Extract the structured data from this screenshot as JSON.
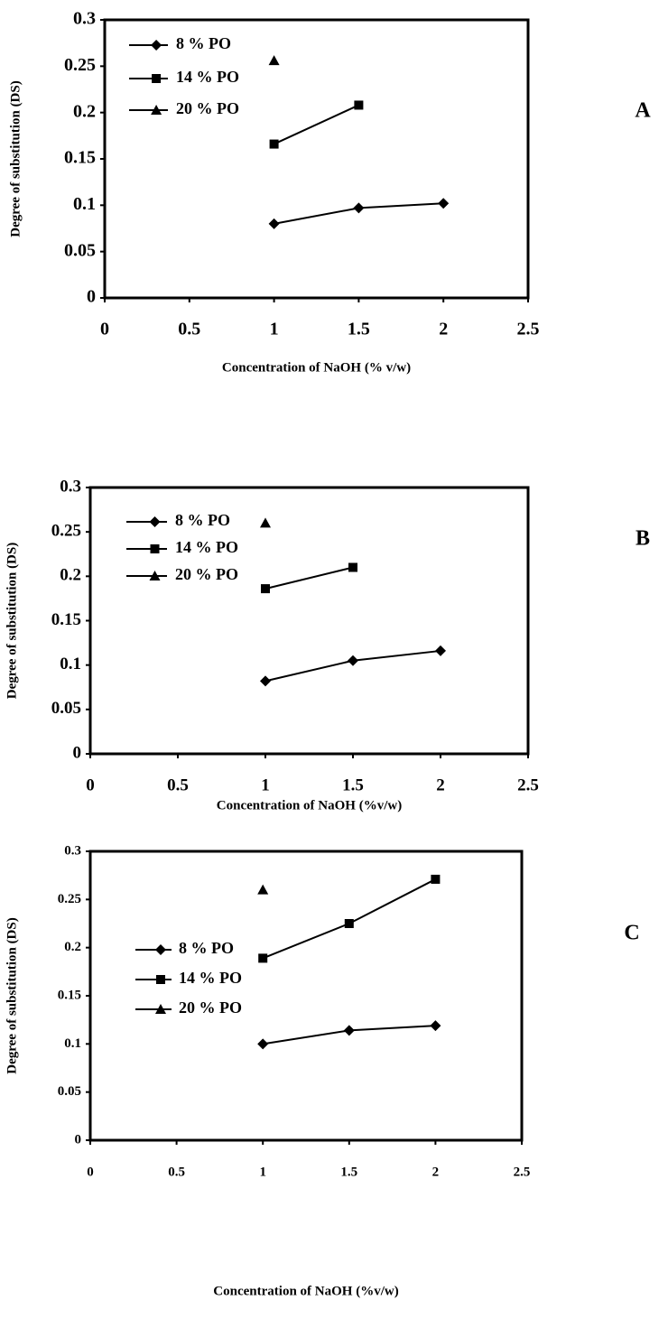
{
  "chart_data": [
    {
      "type": "line",
      "panel_label": "A",
      "xlabel": "Concentration of NaOH (% v/w)",
      "ylabel": "Degree of substitution (DS)",
      "x": [
        1,
        1.5,
        2
      ],
      "xlim": [
        0,
        2.5
      ],
      "xticks": [
        0,
        0.5,
        1,
        1.5,
        2,
        2.5
      ],
      "ylim": [
        0,
        0.3
      ],
      "yticks": [
        0,
        0.05,
        0.1,
        0.15,
        0.2,
        0.25,
        0.3
      ],
      "series": [
        {
          "name": "8 % PO",
          "color": "#000000",
          "marker": "diamond",
          "values": [
            0.08,
            0.097,
            0.102
          ]
        },
        {
          "name": "14 % PO",
          "color": "#000000",
          "marker": "square",
          "values": [
            0.166,
            0.208,
            null
          ]
        },
        {
          "name": "20 % PO",
          "color": "#000000",
          "marker": "triangle",
          "values": [
            0.256,
            null,
            null
          ]
        }
      ]
    },
    {
      "type": "line",
      "panel_label": "B",
      "xlabel": "Concentration of NaOH (%v/w)",
      "ylabel": "Degree of substitution (DS)",
      "x": [
        1,
        1.5,
        2
      ],
      "xlim": [
        0,
        2.5
      ],
      "xticks": [
        0,
        0.5,
        1,
        1.5,
        2,
        2.5
      ],
      "ylim": [
        0,
        0.3
      ],
      "yticks": [
        0,
        0.05,
        0.1,
        0.15,
        0.2,
        0.25,
        0.3
      ],
      "series": [
        {
          "name": "8 % PO",
          "color": "#000000",
          "marker": "diamond",
          "values": [
            0.082,
            0.105,
            0.116
          ]
        },
        {
          "name": "14 % PO",
          "color": "#000000",
          "marker": "square",
          "values": [
            0.186,
            0.21,
            null
          ]
        },
        {
          "name": "20 % PO",
          "color": "#000000",
          "marker": "triangle",
          "values": [
            0.26,
            null,
            null
          ]
        }
      ]
    },
    {
      "type": "line",
      "panel_label": "C",
      "xlabel": "Concentration of NaOH (%v/w)",
      "ylabel": "Degree of substitution (DS)",
      "x": [
        1,
        1.5,
        2
      ],
      "xlim": [
        0,
        2.5
      ],
      "xticks": [
        0,
        0.5,
        1,
        1.5,
        2,
        2.5
      ],
      "ylim": [
        0,
        0.3
      ],
      "yticks": [
        0,
        0.05,
        0.1,
        0.15,
        0.2,
        0.25,
        0.3
      ],
      "series": [
        {
          "name": "8 % PO",
          "color": "#000000",
          "marker": "diamond",
          "values": [
            0.1,
            0.114,
            0.119
          ]
        },
        {
          "name": "14 % PO",
          "color": "#000000",
          "marker": "square",
          "values": [
            0.189,
            0.225,
            0.271
          ]
        },
        {
          "name": "20 % PO",
          "color": "#000000",
          "marker": "triangle",
          "values": [
            0.26,
            null,
            null
          ]
        }
      ]
    }
  ]
}
